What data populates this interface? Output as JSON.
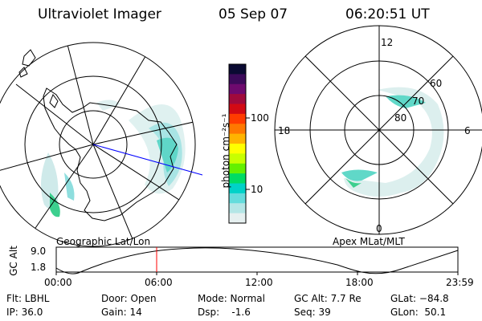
{
  "header": {
    "title": "Ultraviolet Imager",
    "date": "05 Sep 07",
    "time": "06:20:51 UT"
  },
  "left_map": {
    "label": "Geographic Lat/Lon"
  },
  "right_map": {
    "label": "Apex MLat/MLT",
    "mlt_labels": {
      "top": "12",
      "left": "18",
      "right": "6",
      "bottom": "0"
    },
    "lat_labels": [
      "60",
      "70",
      "80"
    ]
  },
  "colorbar": {
    "unit_label": "photon cm⁻²s⁻¹",
    "ticks": [
      "100",
      "10"
    ],
    "colors": [
      "#0a0a32",
      "#3c0a5a",
      "#6e0a6e",
      "#a00a3c",
      "#d20a14",
      "#ff3c00",
      "#ff7800",
      "#ffb400",
      "#ffff00",
      "#c8ff00",
      "#64f000",
      "#00dc64",
      "#00d2c8",
      "#64dcdc",
      "#b4e6e6",
      "#e6f0f0"
    ]
  },
  "altitude_plot": {
    "ylabel": "GC Alt",
    "yticks": [
      "9.0",
      "1.8"
    ],
    "xticks": [
      "00:00",
      "06:00",
      "12:00",
      "18:00",
      "23:59"
    ]
  },
  "status": {
    "flt": "Flt: LBHL",
    "ip": "IP: 36.0",
    "door": "Door: Open",
    "gain": "Gain: 14",
    "mode": "Mode: Normal",
    "dsp": "Dsp:    -1.6",
    "gcalt": "GC Alt: 7.7 Re",
    "seq": "Seq: 39",
    "glat": "GLat: −84.8",
    "glon": "GLon:  50.1"
  }
}
